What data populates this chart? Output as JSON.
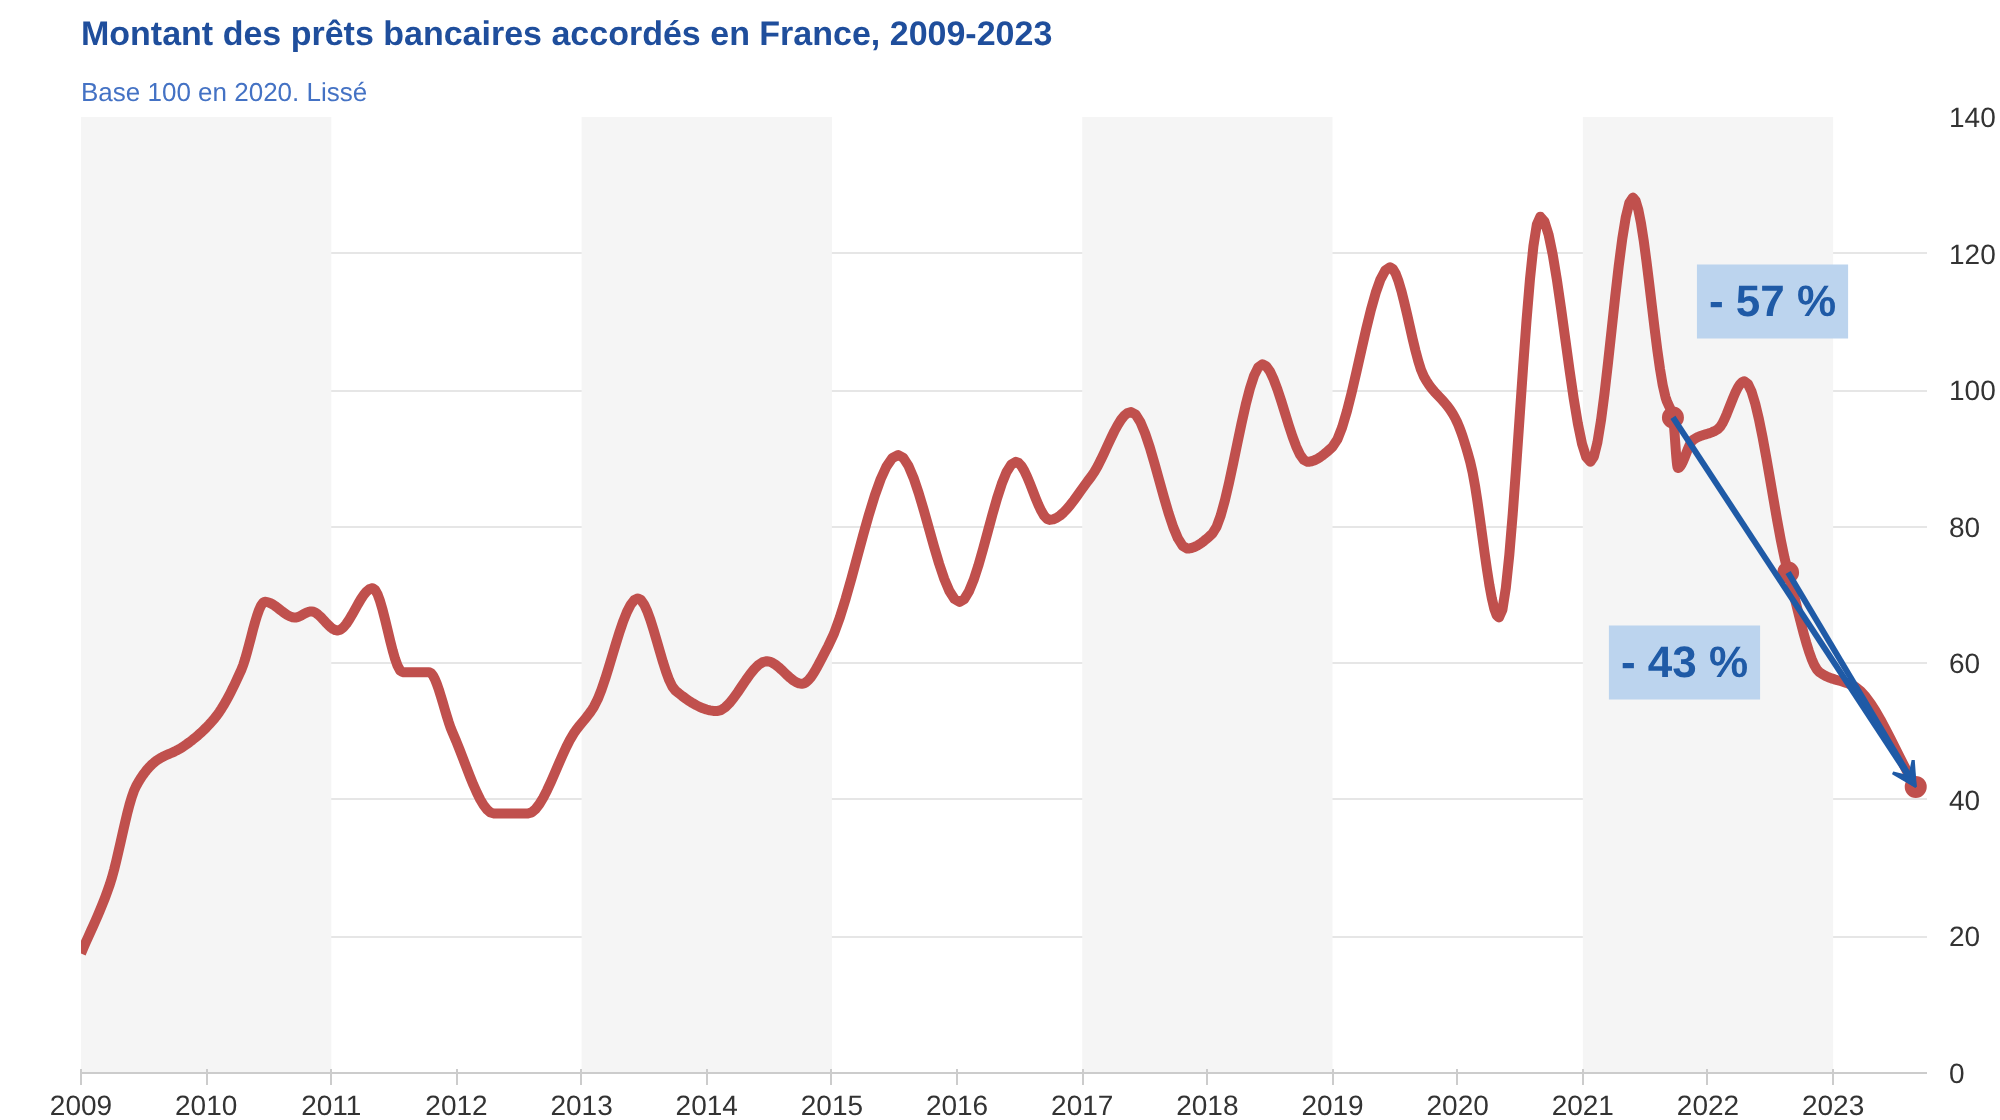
{
  "chart_data": {
    "type": "line",
    "title": "Montant des prêts bancaires accordés en France, 2009-2023",
    "subtitle": "Base 100 en 2020. Lissé",
    "x": [
      2009.0,
      2009.23,
      2009.44,
      2009.6,
      2009.8,
      2010.07,
      2010.28,
      2010.47,
      2010.71,
      2010.84,
      2011.05,
      2011.33,
      2011.57,
      2011.78,
      2011.97,
      2012.3,
      2012.57,
      2012.94,
      2013.1,
      2013.45,
      2013.75,
      2014.08,
      2014.48,
      2014.76,
      2014.97,
      2015.53,
      2016.02,
      2016.47,
      2016.74,
      2017.07,
      2017.39,
      2017.84,
      2018.04,
      2018.44,
      2018.8,
      2019.0,
      2019.46,
      2019.73,
      2019.98,
      2020.1,
      2020.33,
      2020.66,
      2021.06,
      2021.4,
      2021.66,
      2021.72,
      2021.76,
      2021.88,
      2022.08,
      2022.29,
      2022.64,
      2022.89,
      2023.18,
      2023.66
    ],
    "series": [
      {
        "color": "#c0504d",
        "values": [
          17.5,
          27.6,
          42,
          45.7,
          47.6,
          52,
          59,
          69,
          66.7,
          67.6,
          64.8,
          71,
          58.7,
          58.7,
          49.8,
          38,
          38,
          49.8,
          53.7,
          69.5,
          56,
          53,
          60.3,
          57,
          62.5,
          90.5,
          69,
          89.5,
          81,
          87.3,
          96.8,
          76.8,
          79,
          103.8,
          89.5,
          91.7,
          118,
          102,
          95.9,
          89.5,
          66.7,
          125.4,
          89.5,
          128.2,
          99,
          96,
          88.6,
          92.7,
          94.3,
          101.3,
          73.3,
          58.7,
          56.5,
          41.9
        ]
      }
    ],
    "xlim": [
      2009,
      2023.75
    ],
    "xticks": [
      2009,
      2010,
      2011,
      2012,
      2013,
      2014,
      2015,
      2016,
      2017,
      2018,
      2019,
      2020,
      2021,
      2022,
      2023
    ],
    "ylim": [
      0,
      140
    ],
    "yticks": [
      0,
      20,
      40,
      60,
      80,
      100,
      120,
      140
    ],
    "grid": "y",
    "bands": [
      {
        "axis": "x",
        "from": 2009,
        "to": 2011,
        "color": "#f5f5f5"
      },
      {
        "axis": "x",
        "from": 2013,
        "to": 2015,
        "color": "#f5f5f5"
      },
      {
        "axis": "x",
        "from": 2017,
        "to": 2019,
        "color": "#f5f5f5"
      },
      {
        "axis": "x",
        "from": 2021,
        "to": 2023,
        "color": "#f5f5f5"
      }
    ],
    "annotations": [
      {
        "text": "- 57 %",
        "x": 2021.72,
        "y": 96
      },
      {
        "text": "- 43 %",
        "x": 2022.64,
        "y": 73.3
      }
    ]
  }
}
